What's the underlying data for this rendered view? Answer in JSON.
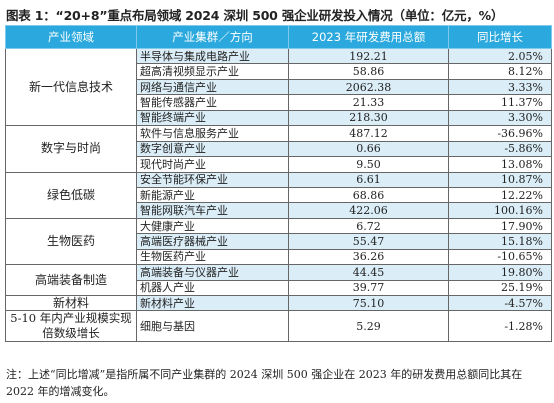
{
  "title": "图表 1：“20+8”重点布局领域 2024 深圳 500 强企业研发投入情况（单位：亿元，%）",
  "headers": [
    "产业领域",
    "产业集群／方向",
    "2023 年研发费用总额",
    "同比增长"
  ],
  "groups": [
    {
      "domain": "新一代信息技术",
      "rows": [
        {
          "cluster": "半导体与集成电路产业",
          "value": "192.21",
          "growth": "2.05%"
        },
        {
          "cluster": "超高清视频显示产业",
          "value": "58.86",
          "growth": "8.12%"
        },
        {
          "cluster": "网络与通信产业",
          "value": "2062.38",
          "growth": "3.33%"
        },
        {
          "cluster": "智能传感器产业",
          "value": "21.33",
          "growth": "11.37%"
        },
        {
          "cluster": "智能终端产业",
          "value": "218.30",
          "growth": "3.30%"
        }
      ]
    },
    {
      "domain": "数字与时尚",
      "rows": [
        {
          "cluster": "软件与信息服务产业",
          "value": "487.12",
          "growth": "-36.96%"
        },
        {
          "cluster": "数字创意产业",
          "value": "0.66",
          "growth": "-5.86%"
        },
        {
          "cluster": "现代时尚产业",
          "value": "9.50",
          "growth": "13.08%"
        }
      ]
    },
    {
      "domain": "绿色低碳",
      "rows": [
        {
          "cluster": "安全节能环保产业",
          "value": "6.61",
          "growth": "10.87%"
        },
        {
          "cluster": "新能源产业",
          "value": "68.86",
          "growth": "12.22%"
        },
        {
          "cluster": "智能网联汽车产业",
          "value": "422.06",
          "growth": "100.16%"
        }
      ]
    },
    {
      "domain": "生物医药",
      "rows": [
        {
          "cluster": "大健康产业",
          "value": "6.72",
          "growth": "17.90%"
        },
        {
          "cluster": "高端医疗器械产业",
          "value": "55.47",
          "growth": "15.18%"
        },
        {
          "cluster": "生物医药产业",
          "value": "36.26",
          "growth": "-10.65%"
        }
      ]
    },
    {
      "domain": "高端装备制造",
      "rows": [
        {
          "cluster": "高端装备与仪器产业",
          "value": "44.45",
          "growth": "19.80%"
        },
        {
          "cluster": "机器人产业",
          "value": "39.77",
          "growth": "25.19%"
        }
      ]
    },
    {
      "domain": "新材料",
      "rows": [
        {
          "cluster": "新材料产业",
          "value": "75.10",
          "growth": "-4.57%"
        }
      ]
    },
    {
      "domain": "5-10 年内产业规模实现倍数级增长",
      "rows": [
        {
          "cluster": "细胞与基因",
          "value": "5.29",
          "growth": "-1.28%"
        }
      ]
    }
  ],
  "note": "注：上述“同比增减”是指所属不同产业集群的 2024 深圳 500 强企业在 2023 年的研发费用总额同比其在 2022 年的增减变化。"
}
